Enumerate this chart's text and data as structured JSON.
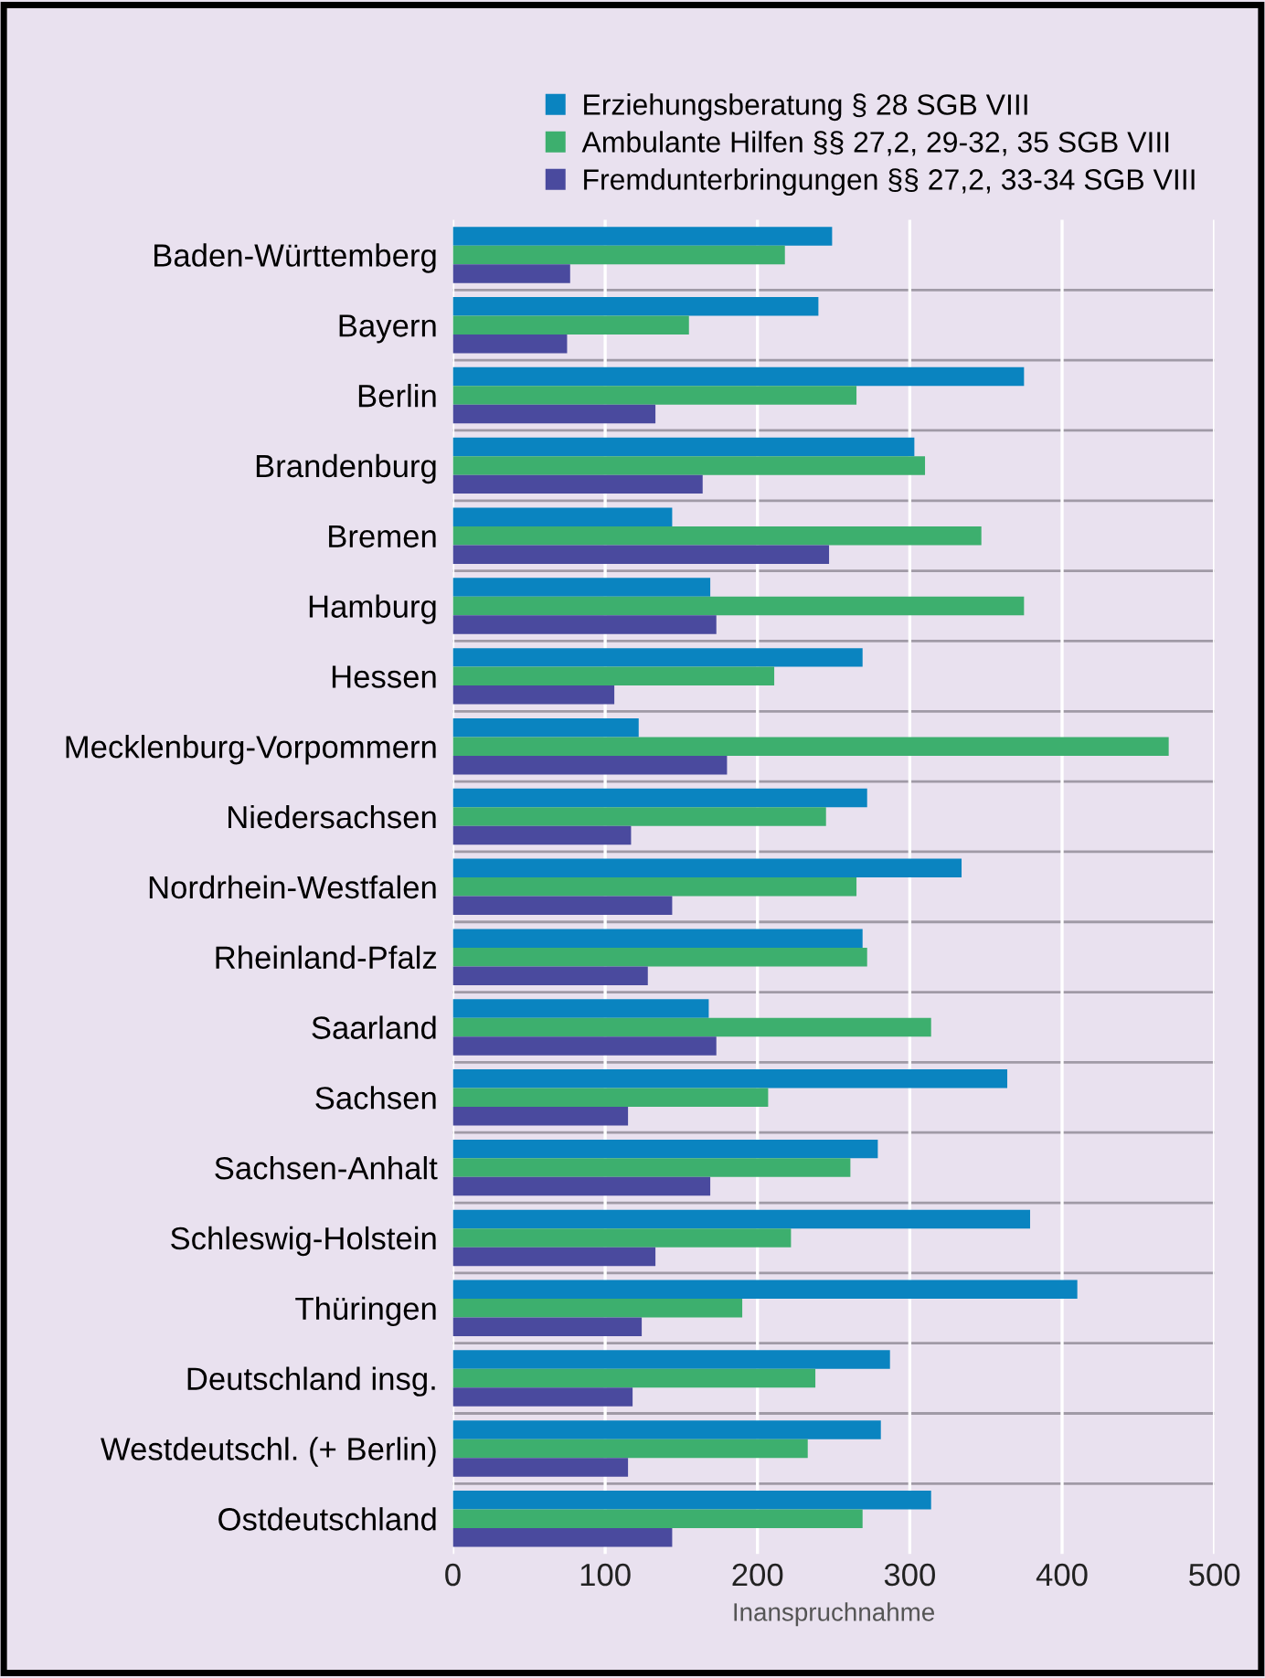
{
  "chart_data": {
    "type": "bar",
    "orientation": "horizontal",
    "xlabel": "Inanspruchnahme",
    "categories": [
      "Baden-Württemberg",
      "Bayern",
      "Berlin",
      "Brandenburg",
      "Bremen",
      "Hamburg",
      "Hessen",
      "Mecklenburg-Vorpommern",
      "Niedersachsen",
      "Nordrhein-Westfalen",
      "Rheinland-Pfalz",
      "Saarland",
      "Sachsen",
      "Sachsen-Anhalt",
      "Schleswig-Holstein",
      "Thüringen",
      "Deutschland insg.",
      "Westdeutschl. (+ Berlin)",
      "Ostdeutschland"
    ],
    "series": [
      {
        "name": "Erziehungsberatung § 28 SGB VIII",
        "color": "#0a84c0",
        "values": [
          249,
          240,
          375,
          303,
          144,
          169,
          269,
          122,
          272,
          334,
          269,
          168,
          364,
          279,
          379,
          410,
          287,
          281,
          314
        ]
      },
      {
        "name": "Ambulante Hilfen §§ 27,2, 29-32, 35 SGB VIII",
        "color": "#3daf6e",
        "values": [
          218,
          155,
          265,
          310,
          347,
          375,
          211,
          470,
          245,
          265,
          272,
          314,
          207,
          261,
          222,
          190,
          238,
          233,
          269
        ]
      },
      {
        "name": "Fremdunterbringungen §§ 27,2, 33-34 SGB VIII",
        "color": "#4a4a9e",
        "values": [
          77,
          75,
          133,
          164,
          247,
          173,
          106,
          180,
          117,
          144,
          128,
          173,
          115,
          169,
          133,
          124,
          118,
          115,
          144
        ]
      }
    ],
    "xlim": [
      0,
      500
    ],
    "xticks": [
      0,
      100,
      200,
      300,
      400,
      500
    ],
    "grid": "x",
    "legend": "top right"
  }
}
